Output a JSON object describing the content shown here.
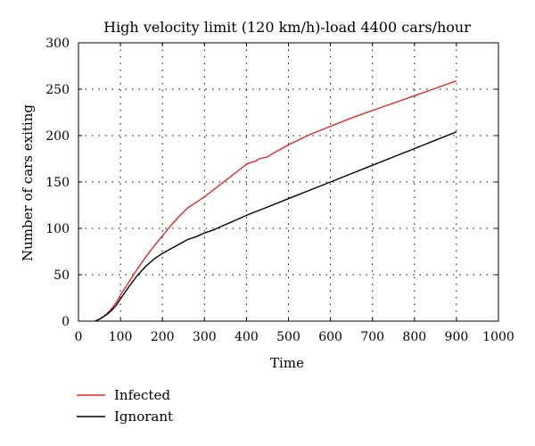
{
  "chart_data": {
    "type": "line",
    "title": "High velocity limit (120 km/h)-load 4400 cars/hour",
    "xlabel": "Time",
    "ylabel": "Number of cars exiting",
    "xlim": [
      0,
      1000
    ],
    "ylim": [
      0,
      300
    ],
    "xticks": [
      0,
      100,
      200,
      300,
      400,
      500,
      600,
      700,
      800,
      900,
      1000
    ],
    "yticks": [
      0,
      50,
      100,
      150,
      200,
      250,
      300
    ],
    "grid": true,
    "legend_position": "below",
    "series": [
      {
        "name": "Infected",
        "color": "#e8262a",
        "x": [
          40,
          50,
          60,
          70,
          80,
          90,
          100,
          120,
          140,
          160,
          180,
          200,
          220,
          240,
          260,
          280,
          300,
          320,
          340,
          360,
          380,
          400,
          410,
          420,
          430,
          440,
          450,
          460,
          480,
          500,
          550,
          600,
          650,
          700,
          750,
          800,
          850,
          900
        ],
        "y": [
          0,
          2,
          5,
          9,
          14,
          20,
          28,
          42,
          56,
          69,
          81,
          92,
          103,
          113,
          122,
          128,
          134,
          141,
          148,
          155,
          162,
          169,
          171,
          172,
          175,
          176,
          177,
          180,
          185,
          190,
          201,
          210,
          219,
          227,
          235,
          243,
          251,
          259
        ]
      },
      {
        "name": "Ignorant",
        "color": "#000000",
        "x": [
          40,
          50,
          60,
          70,
          80,
          90,
          100,
          120,
          140,
          160,
          180,
          200,
          220,
          240,
          260,
          280,
          300,
          320,
          340,
          360,
          380,
          400,
          450,
          500,
          550,
          600,
          650,
          700,
          750,
          800,
          850,
          900
        ],
        "y": [
          0,
          2,
          5,
          8,
          12,
          17,
          24,
          37,
          49,
          59,
          67,
          73,
          78,
          83,
          88,
          91,
          95,
          98,
          102,
          106,
          110,
          114,
          123,
          132,
          141,
          150,
          159,
          168,
          177,
          186,
          195,
          204
        ]
      }
    ]
  }
}
